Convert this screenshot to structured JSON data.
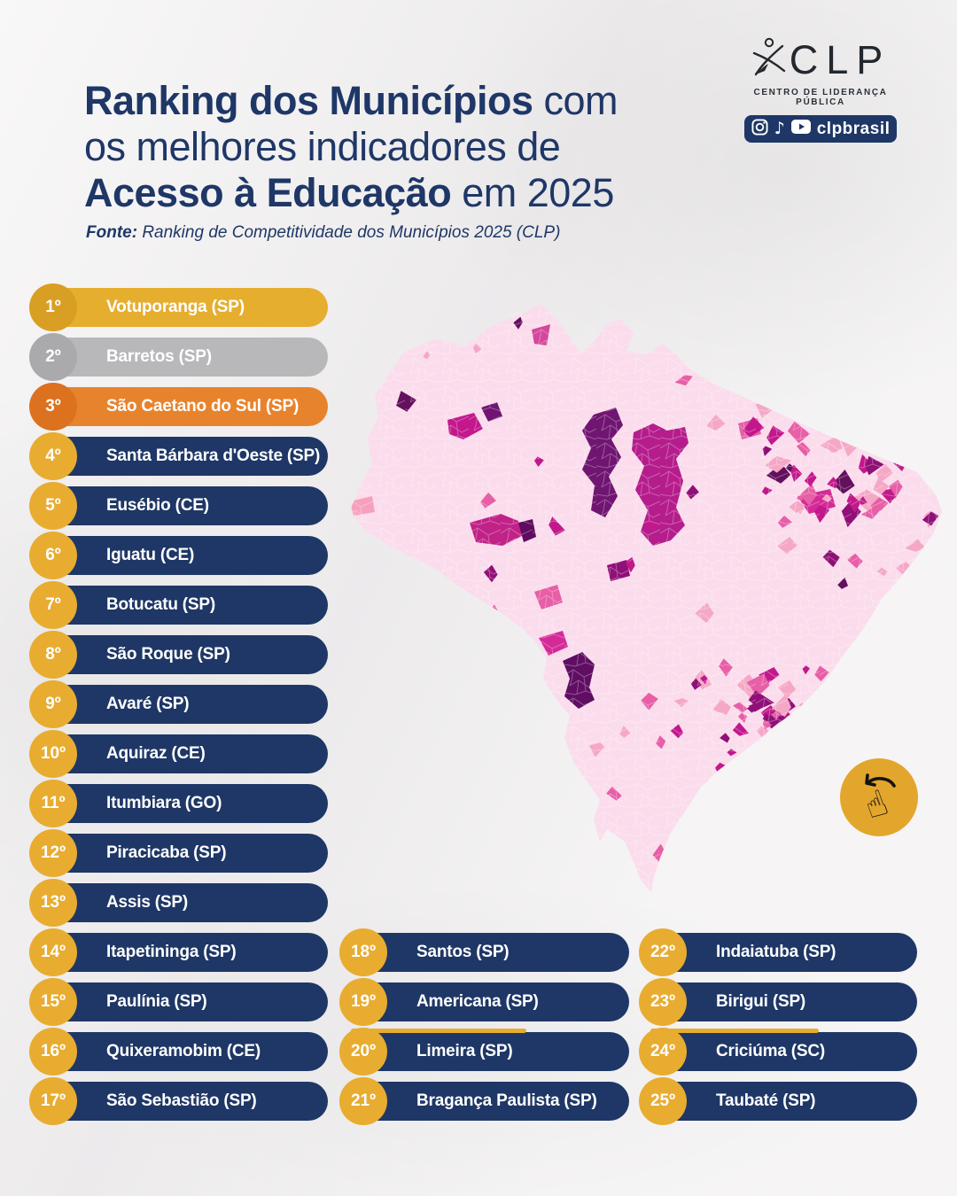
{
  "header": {
    "title_line1_bold": "Ranking dos Municípios",
    "title_line1_rest": " com",
    "title_line2": "os melhores indicadores de",
    "title_line3_bold": "Acesso à Educação",
    "title_line3_rest": " em 2025",
    "source_label": "Fonte:",
    "source_text": " Ranking de Competitividade dos Municípios 2025 (CLP)"
  },
  "logo": {
    "wordmark": "CLP",
    "subtitle": "CENTRO DE LIDERANÇA PÚBLICA",
    "social_handle": "clpbrasil",
    "social_icons": [
      "instagram-icon",
      "tiktok-icon",
      "youtube-icon"
    ]
  },
  "chart_data": {
    "type": "table",
    "title": "Ranking dos Municípios com os melhores indicadores de Acesso à Educação em 2025",
    "source": "Ranking de Competitividade dos Municípios 2025 (CLP)",
    "columns": [
      "posicao",
      "municipio",
      "pill_style",
      "accent"
    ],
    "rows": [
      [
        "1º",
        "Votuporanga (SP)",
        "gold",
        ""
      ],
      [
        "2º",
        "Barretos (SP)",
        "silver",
        ""
      ],
      [
        "3º",
        "São Caetano do Sul (SP)",
        "orange",
        ""
      ],
      [
        "4º",
        "Santa Bárbara d'Oeste (SP)",
        "navy",
        ""
      ],
      [
        "5º",
        "Eusébio (CE)",
        "navy",
        ""
      ],
      [
        "6º",
        "Iguatu (CE)",
        "navy",
        ""
      ],
      [
        "7º",
        "Botucatu (SP)",
        "navy",
        ""
      ],
      [
        "8º",
        "São Roque (SP)",
        "navy",
        ""
      ],
      [
        "9º",
        "Avaré (SP)",
        "navy",
        ""
      ],
      [
        "10º",
        "Aquiraz (CE)",
        "navy",
        ""
      ],
      [
        "11º",
        "Itumbiara (GO)",
        "navy",
        ""
      ],
      [
        "12º",
        "Piracicaba (SP)",
        "navy",
        ""
      ],
      [
        "13º",
        "Assis (SP)",
        "navy",
        ""
      ],
      [
        "14º",
        "Itapetininga (SP)",
        "navy",
        ""
      ],
      [
        "15º",
        "Paulínia (SP)",
        "navy",
        ""
      ],
      [
        "16º",
        "Quixeramobim (CE)",
        "navy",
        ""
      ],
      [
        "17º",
        "São Sebastião (SP)",
        "navy",
        ""
      ],
      [
        "18º",
        "Santos (SP)",
        "navy",
        ""
      ],
      [
        "19º",
        "Americana (SP)",
        "navy",
        ""
      ],
      [
        "20º",
        "Limeira (SP)",
        "navy",
        "accent"
      ],
      [
        "21º",
        "Bragança Paulista (SP)",
        "navy",
        ""
      ],
      [
        "22º",
        "Indaiatuba (SP)",
        "navy",
        ""
      ],
      [
        "23º",
        "Birigui (SP)",
        "navy",
        ""
      ],
      [
        "24º",
        "Criciúma (SC)",
        "navy",
        "accent"
      ],
      [
        "25º",
        "Taubaté (SP)",
        "navy",
        ""
      ]
    ]
  },
  "map": {
    "region": "Brasil",
    "style": "choropleth of municipalities",
    "base_color": "#fbdcec",
    "value_palette": [
      "#f5a8c6",
      "#e75fa6",
      "#c2188c",
      "#8f1077",
      "#63105e"
    ]
  },
  "hand_hint": {
    "icon": "swipe-hand-icon",
    "background": "#e3a62c"
  },
  "colors": {
    "paper": "#f1eff0",
    "title_navy": "#1e3767",
    "pill_navy": "#1e3766",
    "badge_gold": "#e8ac30",
    "gold": "#e6ae2f",
    "silver": "#b8b7b9",
    "orange": "#e8832d"
  }
}
